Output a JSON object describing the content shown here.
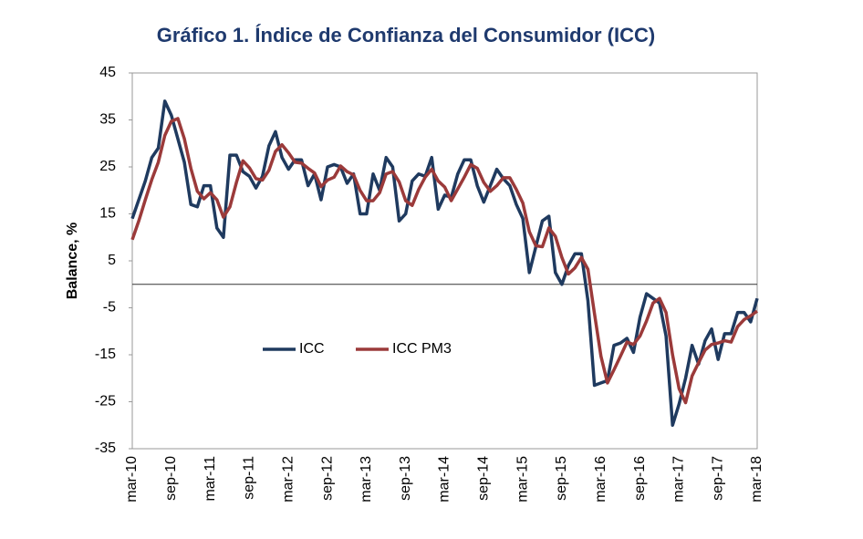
{
  "chart_data": {
    "type": "line",
    "title": "Gráfico 1. Índice de Confianza del Consumidor (ICC)",
    "y_label": "Balance, %",
    "categories": [
      "mar-10",
      null,
      null,
      null,
      null,
      null,
      "sep-10",
      null,
      null,
      null,
      null,
      null,
      "mar-11",
      null,
      null,
      null,
      null,
      null,
      "sep-11",
      null,
      null,
      null,
      null,
      null,
      "mar-12",
      null,
      null,
      null,
      null,
      null,
      "sep-12",
      null,
      null,
      null,
      null,
      null,
      "mar-13",
      null,
      null,
      null,
      null,
      null,
      "sep-13",
      null,
      null,
      null,
      null,
      null,
      "mar-14",
      null,
      null,
      null,
      null,
      null,
      "sep-14",
      null,
      null,
      null,
      null,
      null,
      "mar-15",
      null,
      null,
      null,
      null,
      null,
      "sep-15",
      null,
      null,
      null,
      null,
      null,
      "mar-16",
      null,
      null,
      null,
      null,
      null,
      "sep-16",
      null,
      null,
      null,
      null,
      null,
      "mar-17",
      null,
      null,
      null,
      null,
      null,
      "sep-17",
      null,
      null,
      null,
      null,
      null,
      "mar-18"
    ],
    "series": [
      {
        "name": "ICC",
        "color": "#1f3a5f",
        "values": [
          14,
          18,
          22,
          27,
          29,
          39,
          36,
          31,
          26,
          17,
          16.5,
          21,
          21,
          12,
          10,
          27.5,
          27.5,
          24,
          23,
          20.5,
          23,
          29.5,
          32.5,
          27,
          24.5,
          26.5,
          26.5,
          21,
          23.5,
          18,
          25,
          25.5,
          25,
          21.5,
          23.5,
          15,
          15,
          23.5,
          20,
          27,
          25,
          13.5,
          15,
          22,
          23.5,
          23,
          27,
          16,
          19,
          18.5,
          23.5,
          26.5,
          26.5,
          21,
          17.5,
          21,
          24.5,
          22.5,
          21,
          17,
          14,
          2.5,
          8,
          13.5,
          14.5,
          2.5,
          0,
          4,
          6.5,
          6.5,
          -3.5,
          -21.5,
          -21,
          -20.5,
          -13,
          -12.5,
          -11.5,
          -14.5,
          -7,
          -2,
          -3,
          -4,
          -11,
          -30,
          -25.5,
          -20,
          -13,
          -17,
          -12,
          -9.5,
          -16,
          -10.5,
          -10.5,
          -6,
          -6,
          -8,
          -3
        ]
      },
      {
        "name": "ICC PM3",
        "color": "#9b3a3a",
        "values": [
          9.5,
          13.5,
          18,
          22.3,
          26,
          31.7,
          34.7,
          35.3,
          31,
          24.7,
          19.8,
          18.2,
          19.5,
          18,
          14.3,
          16.5,
          21.7,
          26.3,
          24.8,
          22.5,
          22.2,
          24.3,
          28.3,
          29.7,
          28,
          26,
          25.8,
          24.7,
          23.7,
          20.8,
          22.2,
          22.8,
          25.2,
          24,
          23.3,
          20,
          17.8,
          17.8,
          19.5,
          23.5,
          24,
          21.8,
          17.8,
          16.8,
          20.2,
          22.8,
          24.5,
          22,
          20.7,
          17.8,
          20.3,
          22.8,
          25.5,
          24.7,
          21.7,
          19.8,
          21,
          22.7,
          22.7,
          20.2,
          17.3,
          11.2,
          8.2,
          8,
          12,
          10.2,
          5.7,
          2.2,
          3.5,
          5.7,
          3.2,
          -6.2,
          -15.3,
          -21,
          -18.2,
          -15.3,
          -12.3,
          -12.8,
          -11,
          -7.8,
          -4,
          -3,
          -6,
          -15,
          -22.2,
          -25.2,
          -19.5,
          -16.7,
          -14,
          -12.8,
          -12.5,
          -12,
          -12.3,
          -9,
          -7.5,
          -6.7,
          -5.7
        ]
      }
    ],
    "ylim": [
      -35,
      45
    ],
    "yticks": [
      45,
      35,
      25,
      15,
      5,
      -5,
      -15,
      -25,
      -35
    ],
    "legend": "inside"
  }
}
